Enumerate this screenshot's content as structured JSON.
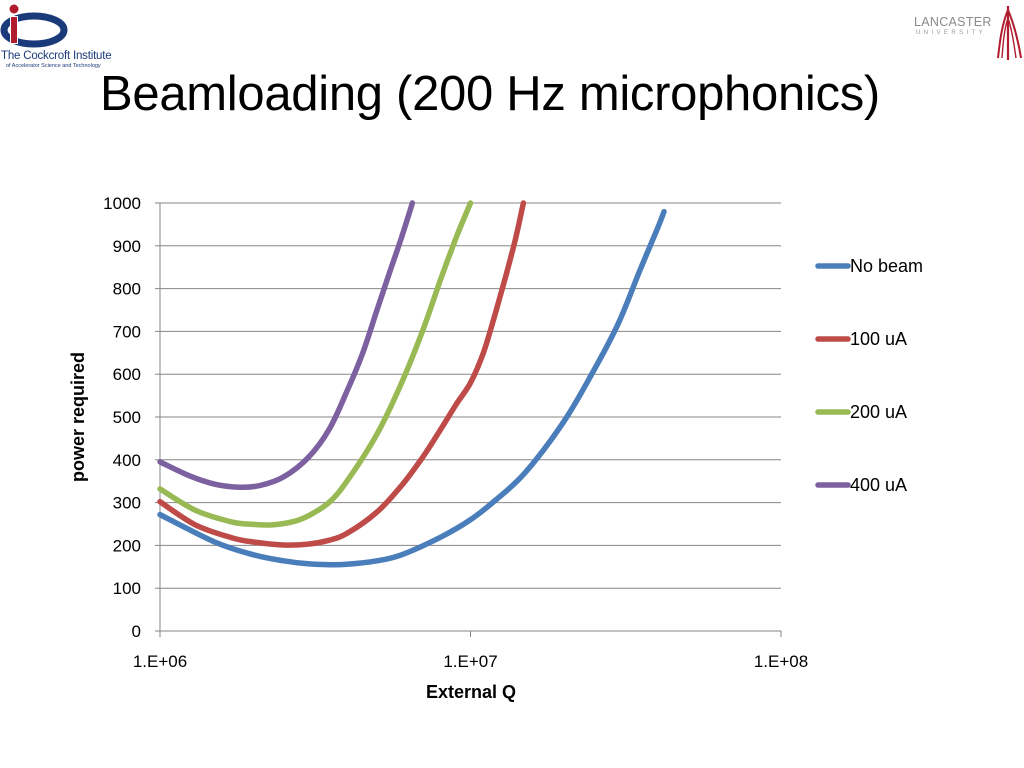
{
  "header": {
    "title": "Beamloading (200 Hz microphonics)",
    "left_logo": {
      "name": "The Cockcroft Institute",
      "tagline": "of Accelerator Science and Technology"
    },
    "right_logo": {
      "name": "LANCASTER",
      "subtitle": "UNIVERSITY"
    }
  },
  "colors": {
    "no_beam": "#4A7EBB",
    "ua100": "#BE4B48",
    "ua200": "#98B954",
    "ua400": "#7D60A0",
    "grid": "#868686",
    "logo_blue": "#1a3a7a",
    "logo_red": "#b01c2e"
  },
  "chart_data": {
    "type": "line",
    "title": "",
    "xlabel": "External Q",
    "ylabel": "power required",
    "x_scale": "log",
    "xlim": [
      1000000,
      100000000
    ],
    "ylim": [
      0,
      1000
    ],
    "x_ticks": [
      1000000,
      10000000,
      100000000
    ],
    "x_tick_labels": [
      "1.E+06",
      "1.E+07",
      "1.E+08"
    ],
    "y_ticks": [
      0,
      100,
      200,
      300,
      400,
      500,
      600,
      700,
      800,
      900,
      1000
    ],
    "y_tick_labels": [
      "0",
      "100",
      "200",
      "300",
      "400",
      "500",
      "600",
      "700",
      "800",
      "900",
      "1000"
    ],
    "grid": true,
    "legend": "right",
    "series": [
      {
        "name": "No beam",
        "color_key": "no_beam",
        "x": [
          1000000,
          1500000,
          2000000,
          2500000,
          3000000,
          3500000,
          4000000,
          5000000,
          6000000,
          8000000,
          10000000,
          12000000,
          15000000,
          20000000,
          25000000,
          30000000,
          35000000,
          40000000,
          42000000
        ],
        "y": [
          272,
          208,
          178,
          164,
          157,
          155,
          156,
          164,
          178,
          219,
          260,
          305,
          370,
          490,
          610,
          720,
          840,
          940,
          980
        ]
      },
      {
        "name": "100 uA",
        "color_key": "ua100",
        "x": [
          1000000,
          1300000,
          1700000,
          2000000,
          2500000,
          3000000,
          3500000,
          4000000,
          5000000,
          6000000,
          7000000,
          8000000,
          9000000,
          10000000,
          11000000,
          12000000,
          13000000,
          14000000,
          14800000
        ],
        "y": [
          302,
          248,
          218,
          208,
          201,
          203,
          212,
          228,
          278,
          340,
          405,
          470,
          530,
          580,
          650,
          740,
          830,
          920,
          1000
        ]
      },
      {
        "name": "200 uA",
        "color_key": "ua200",
        "x": [
          1000000,
          1300000,
          1700000,
          2000000,
          2300000,
          2700000,
          3000000,
          3500000,
          4000000,
          5000000,
          6000000,
          7000000,
          8000000,
          9000000,
          10000000
        ],
        "y": [
          332,
          282,
          255,
          249,
          248,
          256,
          269,
          300,
          350,
          460,
          580,
          700,
          820,
          920,
          1000
        ]
      },
      {
        "name": "400 uA",
        "color_key": "ua400",
        "x": [
          1000000,
          1250000,
          1500000,
          1800000,
          2100000,
          2500000,
          3000000,
          3500000,
          4000000,
          4500000,
          5000000,
          5500000,
          6000000,
          6500000
        ],
        "y": [
          395,
          362,
          343,
          336,
          340,
          360,
          405,
          470,
          560,
          650,
          750,
          840,
          920,
          1000
        ]
      }
    ]
  }
}
